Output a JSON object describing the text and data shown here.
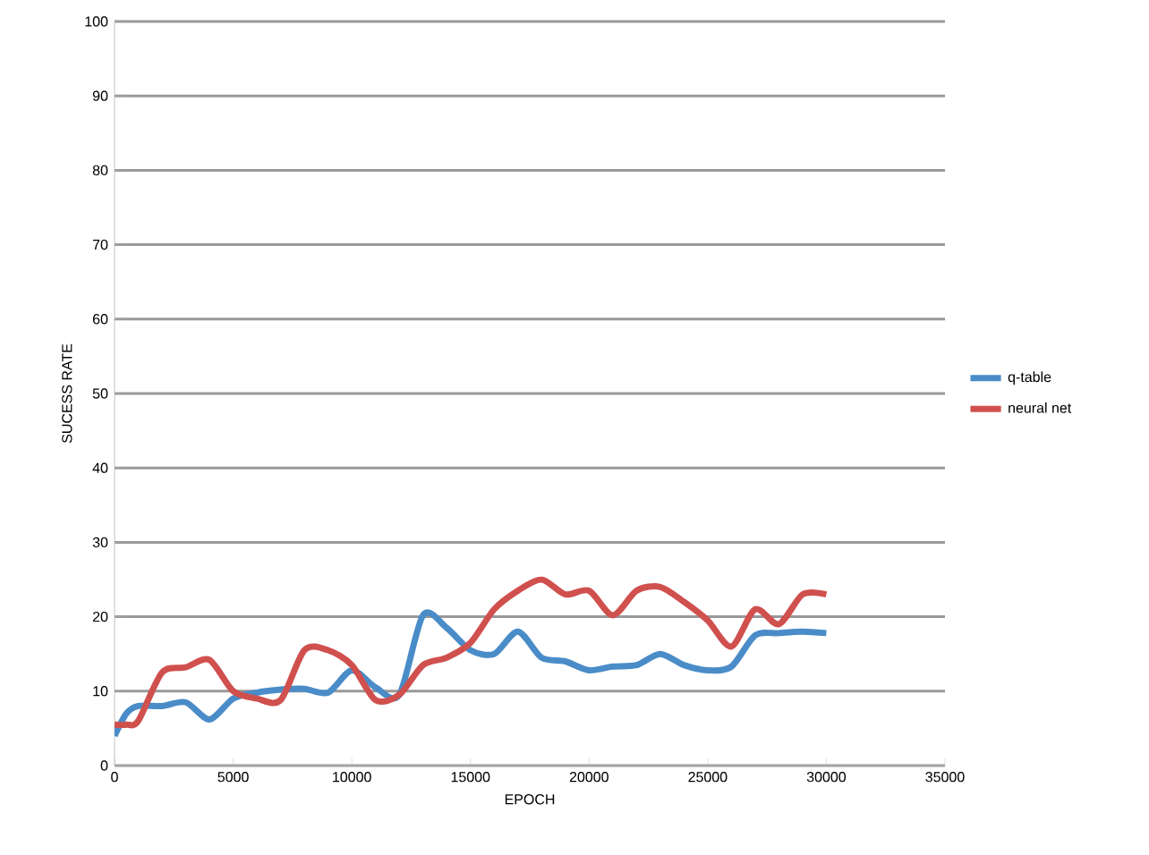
{
  "chart_data": {
    "type": "line",
    "xlabel": "EPOCH",
    "ylabel": "SUCESS RATE",
    "x": [
      0,
      500,
      1000,
      2000,
      3000,
      4000,
      5000,
      6000,
      7000,
      8000,
      9000,
      10000,
      11000,
      12000,
      13000,
      14000,
      15000,
      16000,
      17000,
      18000,
      19000,
      20000,
      21000,
      22000,
      23000,
      24000,
      25000,
      26000,
      27000,
      28000,
      29000,
      30000
    ],
    "series": [
      {
        "name": "q-table",
        "color": "#4a8cc8",
        "values": [
          4,
          7,
          8,
          8,
          8.5,
          6.2,
          9,
          9.8,
          10.2,
          10.3,
          9.8,
          12.8,
          10.5,
          9.5,
          20.2,
          18.5,
          15.5,
          15,
          18,
          14.5,
          14,
          12.8,
          13.3,
          13.5,
          15,
          13.5,
          12.8,
          13.3,
          17.5,
          17.8,
          18,
          17.8
        ]
      },
      {
        "name": "neural net",
        "color": "#d0504e",
        "values": [
          5.5,
          5.5,
          6,
          12.5,
          13.2,
          14.2,
          10,
          9,
          8.8,
          15.5,
          15.5,
          13.5,
          8.8,
          9.5,
          13.5,
          14.5,
          16.5,
          21,
          23.5,
          25,
          23,
          23.5,
          20.2,
          23.5,
          24,
          22,
          19.5,
          16,
          21,
          19,
          23,
          23
        ]
      }
    ],
    "xlim": [
      0,
      35000
    ],
    "xticks": [
      0,
      5000,
      10000,
      15000,
      20000,
      25000,
      30000,
      35000
    ],
    "ylim": [
      0,
      100
    ],
    "yticks": [
      0,
      10,
      20,
      30,
      40,
      50,
      60,
      70,
      80,
      90,
      100
    ],
    "grid": "y",
    "legend": "right",
    "marker": "none",
    "line_style": "solid"
  }
}
